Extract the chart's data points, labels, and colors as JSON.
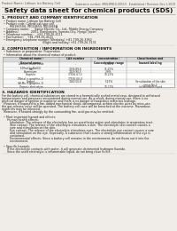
{
  "bg_color": "#f0ede8",
  "header_line1": "Product Name: Lithium Ion Battery Cell",
  "header_line2_right": "Substance number: MG63PB10-00519   Established / Revision: Dec.1.2019",
  "main_title": "Safety data sheet for chemical products (SDS)",
  "section1_title": "1. PRODUCT AND COMPANY IDENTIFICATION",
  "section1_lines": [
    "  • Product name: Lithium Ion Battery Cell",
    "  • Product code: Cylindrical-type cell",
    "         MG1865SU, MG1865S, MG1865A",
    "  • Company name:      Sanyo Electric Co., Ltd., Mobile Energy Company",
    "  • Address:              2001, Kamikaizen, Sumoto-City, Hyogo, Japan",
    "  • Telephone number:    +81-799-26-4111",
    "  • Fax number:    +81-799-26-4121",
    "  • Emergency telephone number (Weekday) +81-799-26-3962",
    "                                              (Night and holiday) +81-799-26-3131"
  ],
  "section2_title": "2. COMPOSITION / INFORMATION ON INGREDIENTS",
  "section2_sub1": "  • Substance or preparation: Preparation",
  "section2_sub2": "  • Information about the chemical nature of product:",
  "table_col_headers": [
    "Chemical name /\nGeneral name",
    "CAS number",
    "Concentration /\nConcentration range",
    "Classification and\nhazard labeling"
  ],
  "table_rows": [
    [
      "Lithium cobalt oxide\n(LiMnxCoyNizO2)",
      "-",
      "30-50%",
      ""
    ],
    [
      "Iron",
      "7439-89-6",
      "15-25%",
      "-"
    ],
    [
      "Aluminium",
      "7429-90-5",
      "2-8%",
      "-"
    ],
    [
      "Graphite\n(Metal in graphite-1)\n(Al-Mo in graphite-1)",
      "77536-67-5\n77536-66-4",
      "10-25%",
      ""
    ],
    [
      "Copper",
      "7440-50-8",
      "5-15%",
      "Sensitization of the skin\ngroup No.2"
    ],
    [
      "Organic electrolyte",
      "-",
      "10-20%",
      "Inflammable liquid"
    ]
  ],
  "section3_title": "3. HAZARDS IDENTIFICATION",
  "section3_lines": [
    "For the battery cell, chemical substances are stored in a hermetically sealed metal case, designed to withstand",
    "temperatures and pressures encountered during normal use. As a result, during normal use, there is no",
    "physical danger of ignition or explosion and there is no danger of hazardous materials leakage.",
    "  However, if exposed to a fire, added mechanical shock, decomposed, written electric wires by miss-use,",
    "the gas release valve will be operated. The battery cell case will be breached at the extreme. Hazardous",
    "materials may be released.",
    "  Moreover, if heated strongly by the surrounding fire, acid gas may be emitted.",
    "",
    "  • Most important hazard and effects:",
    "      Human health effects:",
    "         Inhalation: The release of the electrolyte has an anesthesia action and stimulates in respiratory tract.",
    "         Skin contact: The release of the electrolyte stimulates a skin. The electrolyte skin contact causes a",
    "         sore and stimulation on the skin.",
    "         Eye contact: The release of the electrolyte stimulates eyes. The electrolyte eye contact causes a sore",
    "         and stimulation on the eye. Especially, a substance that causes a strong inflammation of the eye is",
    "         contained.",
    "         Environmental effects: Since a battery cell remains in the environment, do not throw out it into the",
    "         environment.",
    "",
    "  • Specific hazards:",
    "      If the electrolyte contacts with water, it will generate detrimental hydrogen fluoride.",
    "      Since the used electrolyte is inflammable liquid, do not bring close to fire."
  ]
}
